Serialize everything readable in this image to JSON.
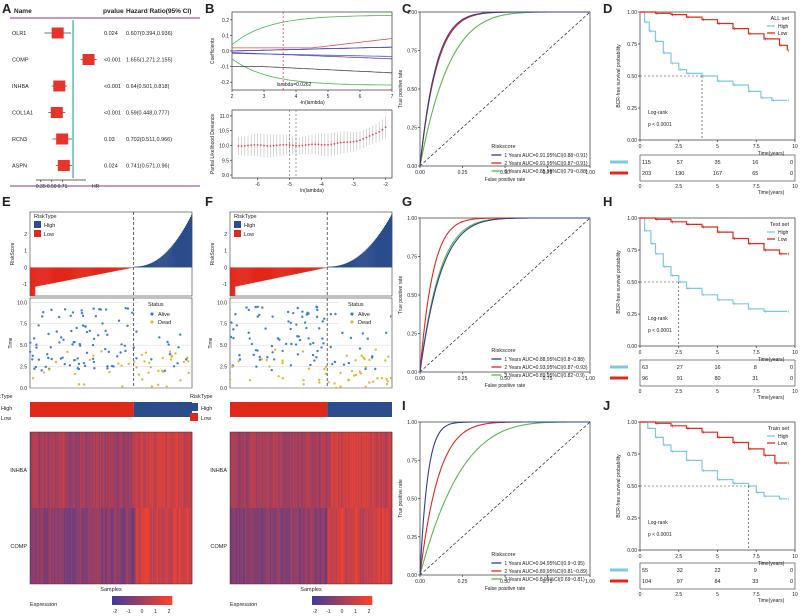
{
  "panel_letters": [
    "A",
    "B",
    "C",
    "D",
    "E",
    "F",
    "G",
    "H",
    "I",
    "J"
  ],
  "chart_data": [
    {
      "panel": "A",
      "type": "forest",
      "headers": {
        "name": "Name",
        "pvalue": "pvalue",
        "hr": "Hazard Ratio(95% CI)"
      },
      "rows": [
        {
          "name": "OLR1",
          "pvalue": "0.024",
          "hr_text": "0.607(0.394,0.936)",
          "hr": 0.607,
          "lo": 0.394,
          "hi": 0.936
        },
        {
          "name": "COMP",
          "pvalue": "<0.001",
          "hr_text": "1.655(1.271,2.155)",
          "hr": 1.655,
          "lo": 1.271,
          "hi": 2.155
        },
        {
          "name": "INHBA",
          "pvalue": "<0.001",
          "hr_text": "0.64(0.501,0.818)",
          "hr": 0.64,
          "lo": 0.501,
          "hi": 0.818
        },
        {
          "name": "COL1A1",
          "pvalue": "<0.001",
          "hr_text": "0.59(0.448,0.777)",
          "hr": 0.59,
          "lo": 0.448,
          "hi": 0.777
        },
        {
          "name": "RCN3",
          "pvalue": "0.03",
          "hr_text": "0.702(0.511,0.966)",
          "hr": 0.702,
          "lo": 0.511,
          "hi": 0.966
        },
        {
          "name": "ASPN",
          "pvalue": "0.024",
          "hr_text": "0.741(0.571,0.96)",
          "hr": 0.741,
          "lo": 0.571,
          "hi": 0.96
        }
      ],
      "xticks": [
        "0.35",
        "0.50",
        "0.71"
      ],
      "xlabel": "HR"
    },
    {
      "panel": "B",
      "type": "lasso",
      "top": {
        "ylabel": "Coefficients",
        "xlabel": "-ln(lambda)",
        "xticks": [
          "2",
          "3",
          "4",
          "5",
          "6",
          "7"
        ],
        "yticks": [
          "0.2",
          "0.1",
          "0.0",
          "-0.1",
          "-0.2"
        ],
        "annotation": "lambda=0.0262"
      },
      "bottom": {
        "ylabel": "Partial Likelihood Deviance",
        "xlabel": "ln(lambda)",
        "xticks": [
          "-6",
          "-5",
          "-4",
          "-3",
          "-2"
        ],
        "yticks": [
          "11.0",
          "10.5",
          "10.0",
          "9.5",
          "9.0"
        ]
      }
    },
    {
      "panel": "C",
      "type": "line",
      "xlabel": "False positive rate",
      "ylabel": "True positive rate",
      "ticks": [
        "0.00",
        "0.25",
        "0.50",
        "0.75",
        "1.00"
      ],
      "legend_title": "Riskscore",
      "series": [
        {
          "name": "1 Years AUC=0.91,95%CI(0.88~0.91)",
          "color": "#2d3f95",
          "k": 10.5
        },
        {
          "name": "2 Years AUC=0.91,95%CI(0.87~0.91)",
          "color": "#e2271b",
          "k": 10
        },
        {
          "name": "3 Years AUC=0.85,95%CI(0.79~0.88)",
          "color": "#5bb849",
          "k": 5.8
        }
      ]
    },
    {
      "panel": "D",
      "type": "km",
      "set_label": "ALL set",
      "ylabel": "BCR-free survival probability",
      "xlabel": "Time(years)",
      "xticks": [
        "0",
        "2.5",
        "5",
        "7.5",
        "10"
      ],
      "yticks": [
        "1.00",
        "0.75",
        "0.50",
        "0.25",
        "0.00"
      ],
      "logrank": "Log-rank",
      "pvalue": "p < 0.0001",
      "legend": [
        {
          "name": "High",
          "color": "#7ec8e3"
        },
        {
          "name": "Low",
          "color": "#e2271b"
        }
      ],
      "median_high": 4.0,
      "risk_table": {
        "High": [
          "115",
          "57",
          "35",
          "16",
          "0"
        ],
        "Low": [
          "203",
          "190",
          "167",
          "65",
          "0"
        ]
      },
      "high_curve": [
        [
          0,
          1.0
        ],
        [
          0.3,
          0.92
        ],
        [
          0.6,
          0.85
        ],
        [
          1.0,
          0.77
        ],
        [
          1.5,
          0.68
        ],
        [
          2.0,
          0.6
        ],
        [
          2.5,
          0.55
        ],
        [
          3.0,
          0.52
        ],
        [
          4.0,
          0.5
        ],
        [
          5.0,
          0.46
        ],
        [
          6.0,
          0.43
        ],
        [
          7.0,
          0.38
        ],
        [
          7.8,
          0.33
        ],
        [
          8.5,
          0.31
        ],
        [
          9.5,
          0.31
        ]
      ],
      "low_curve": [
        [
          0,
          1.0
        ],
        [
          1.0,
          0.99
        ],
        [
          2.0,
          0.98
        ],
        [
          3.0,
          0.96
        ],
        [
          4.0,
          0.94
        ],
        [
          5.0,
          0.91
        ],
        [
          6.0,
          0.87
        ],
        [
          7.0,
          0.83
        ],
        [
          8.0,
          0.79
        ],
        [
          9.0,
          0.74
        ],
        [
          9.5,
          0.7
        ]
      ]
    },
    {
      "panel": "E",
      "type": "riskplot",
      "legend_title": "RiskType",
      "legend": [
        {
          "name": "High",
          "color": "#2b4d8c"
        },
        {
          "name": "Low",
          "color": "#e2271b"
        }
      ],
      "score_ylabel": "RiskScore",
      "score_yticks": [
        "2",
        "1",
        "0",
        "-1"
      ],
      "time_ylabel": "Time",
      "time_yticks": [
        "10.0",
        "7.5",
        "5.0",
        "2.5",
        "0.0"
      ],
      "status_title": "Status",
      "status": [
        {
          "name": "Alive",
          "color": "#3b7dd8"
        },
        {
          "name": "Dead",
          "color": "#e3b537"
        }
      ],
      "bar_label": "RiskType",
      "heat_genes": [
        "INHBA",
        "COMP"
      ],
      "heat_xlabel": "Samples",
      "expression_label": "Expression",
      "expression_ticks": [
        "-2",
        "-1",
        "0",
        "1",
        "2"
      ],
      "cut_fraction": 0.64
    },
    {
      "panel": "F",
      "type": "riskplot",
      "legend_title": "RiskType",
      "legend": [
        {
          "name": "High",
          "color": "#2b4d8c"
        },
        {
          "name": "Low",
          "color": "#e2271b"
        }
      ],
      "score_ylabel": "RiskScore",
      "score_yticks": [
        "2",
        "1",
        "0",
        "-1"
      ],
      "time_ylabel": "Time",
      "time_yticks": [
        "10.0",
        "7.5",
        "5.0",
        "2.5",
        "0.0"
      ],
      "status_title": "Status",
      "status": [
        {
          "name": "Alive",
          "color": "#3b7dd8"
        },
        {
          "name": "Dead",
          "color": "#e3b537"
        }
      ],
      "bar_label": "RiskType",
      "heat_genes": [
        "INHBA",
        "COMP"
      ],
      "heat_xlabel": "Samples",
      "expression_label": "Expression",
      "expression_ticks": [
        "-2",
        "-1",
        "0",
        "1",
        "2"
      ],
      "cut_fraction": 0.6
    },
    {
      "panel": "G",
      "type": "line",
      "xlabel": "False positive rate",
      "ylabel": "True positive rate",
      "ticks": [
        "0.00",
        "0.25",
        "0.50",
        "0.75",
        "1.00"
      ],
      "legend_title": "Riskscore",
      "series": [
        {
          "name": "1 Years AUC=0.88,95%CI(0.8~0.88)",
          "color": "#2d3f95",
          "k": 8
        },
        {
          "name": "2 Years AUC=0.93,95%CI(0.87~0.93)",
          "color": "#e2271b",
          "k": 13
        },
        {
          "name": "3 Years AUC=0.89,95%CI(0.82~0.9)",
          "color": "#5bb849",
          "k": 8.5
        }
      ]
    },
    {
      "panel": "H",
      "type": "km",
      "set_label": "Test set",
      "ylabel": "BCR-free survival probability",
      "xlabel": "Time(years)",
      "xticks": [
        "0",
        "2.5",
        "5",
        "7.5",
        "10"
      ],
      "yticks": [
        "1.00",
        "0.75",
        "0.50",
        "0.25",
        "0.00"
      ],
      "logrank": "Log-rank",
      "pvalue": "p < 0.0001",
      "legend": [
        {
          "name": "High",
          "color": "#7ec8e3"
        },
        {
          "name": "Low",
          "color": "#e2271b"
        }
      ],
      "median_high": 2.5,
      "risk_table": {
        "High": [
          "63",
          "27",
          "16",
          "8",
          "0"
        ],
        "Low": [
          "96",
          "91",
          "80",
          "31",
          "0"
        ]
      },
      "high_curve": [
        [
          0,
          1.0
        ],
        [
          0.3,
          0.9
        ],
        [
          0.7,
          0.8
        ],
        [
          1.0,
          0.72
        ],
        [
          1.5,
          0.62
        ],
        [
          2.0,
          0.55
        ],
        [
          2.5,
          0.5
        ],
        [
          3.0,
          0.45
        ],
        [
          4.0,
          0.4
        ],
        [
          5.0,
          0.36
        ],
        [
          6.0,
          0.33
        ],
        [
          7.0,
          0.29
        ],
        [
          8.0,
          0.27
        ],
        [
          9.5,
          0.27
        ]
      ],
      "low_curve": [
        [
          0,
          1.0
        ],
        [
          1.0,
          0.99
        ],
        [
          2.0,
          0.97
        ],
        [
          3.0,
          0.95
        ],
        [
          4.0,
          0.93
        ],
        [
          5.0,
          0.89
        ],
        [
          6.0,
          0.84
        ],
        [
          7.0,
          0.8
        ],
        [
          8.0,
          0.75
        ],
        [
          9.0,
          0.72
        ],
        [
          9.5,
          0.72
        ]
      ]
    },
    {
      "panel": "I",
      "type": "line",
      "xlabel": "False positive rate",
      "ylabel": "True positive rate",
      "ticks": [
        "0.00",
        "0.25",
        "0.50",
        "0.75",
        "1.00"
      ],
      "legend_title": "Riskscore",
      "series": [
        {
          "name": "1 Years AUC=0.94,95%CI(0.9~0.95)",
          "color": "#2d3f95",
          "k": 22
        },
        {
          "name": "2 Years AUC=0.89,95%CI(0.81~0.89)",
          "color": "#e2271b",
          "k": 9
        },
        {
          "name": "3 Years AUC=0.8,95%CI(0.69~0.81)",
          "color": "#5bb849",
          "k": 4.2
        }
      ]
    },
    {
      "panel": "J",
      "type": "km",
      "set_label": "Train set",
      "ylabel": "BCR-free survival probability",
      "xlabel": "Time(years)",
      "xticks": [
        "0",
        "2.5",
        "5",
        "7.5",
        "10"
      ],
      "yticks": [
        "1.00",
        "0.75",
        "0.50",
        "0.25",
        "0.00"
      ],
      "logrank": "Log-rank",
      "pvalue": "p < 0.0001",
      "legend": [
        {
          "name": "High",
          "color": "#7ec8e3"
        },
        {
          "name": "Low",
          "color": "#e2271b"
        }
      ],
      "median_high": 7.0,
      "risk_table": {
        "High": [
          "55",
          "32",
          "22",
          "9",
          "0"
        ],
        "Low": [
          "104",
          "97",
          "84",
          "33",
          "0"
        ]
      },
      "high_curve": [
        [
          0,
          1.0
        ],
        [
          0.5,
          0.95
        ],
        [
          1.0,
          0.88
        ],
        [
          1.5,
          0.82
        ],
        [
          2.0,
          0.77
        ],
        [
          3.0,
          0.7
        ],
        [
          4.0,
          0.62
        ],
        [
          5.0,
          0.55
        ],
        [
          6.0,
          0.52
        ],
        [
          7.0,
          0.5
        ],
        [
          7.5,
          0.45
        ],
        [
          8.0,
          0.42
        ],
        [
          9.0,
          0.4
        ],
        [
          9.5,
          0.4
        ]
      ],
      "low_curve": [
        [
          0,
          1.0
        ],
        [
          1.0,
          0.99
        ],
        [
          2.0,
          0.97
        ],
        [
          3.0,
          0.95
        ],
        [
          4.0,
          0.92
        ],
        [
          5.0,
          0.88
        ],
        [
          6.0,
          0.84
        ],
        [
          7.0,
          0.79
        ],
        [
          8.0,
          0.74
        ],
        [
          8.7,
          0.68
        ],
        [
          9.5,
          0.68
        ]
      ]
    }
  ]
}
